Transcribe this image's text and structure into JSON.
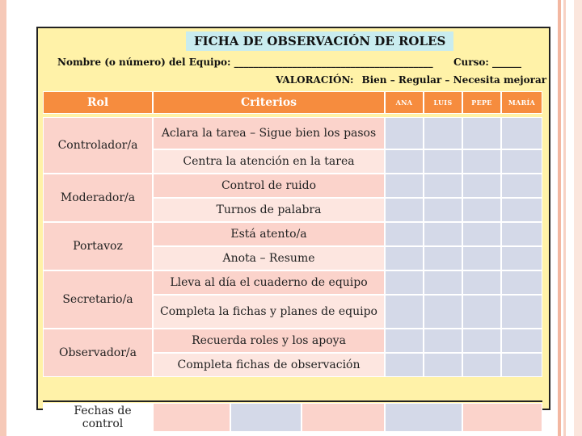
{
  "sheet": {
    "title": "FICHA DE OBSERVACIÓN DE ROLES",
    "equipo_label": "Nombre (o número) del Equipo: _________________________________________",
    "curso_label": "Curso: ______",
    "valoracion_label": "VALORACIÓN:",
    "valoracion_scale": "Bien – Regular – Necesita mejorar"
  },
  "table": {
    "headers": {
      "rol": "Rol",
      "criterios": "Criterios",
      "students": [
        "ANA",
        "LUIS",
        "PEPE",
        "MARÍA"
      ]
    },
    "roles": [
      {
        "name": "Controlador/a",
        "criteria": [
          "Aclara la tarea – Sigue bien los pasos",
          "Centra la atención en la tarea"
        ]
      },
      {
        "name": "Moderador/a",
        "criteria": [
          "Control de ruido",
          "Turnos de palabra"
        ]
      },
      {
        "name": "Portavoz",
        "criteria": [
          "Está atento/a",
          "Anota – Resume"
        ]
      },
      {
        "name": "Secretario/a",
        "criteria": [
          "Lleva al día el cuaderno de equipo",
          "Completa la fichas y planes de equipo"
        ]
      },
      {
        "name": "Observador/a",
        "criteria": [
          "Recuerda roles y los apoya",
          "Completa fichas de observación"
        ]
      }
    ],
    "footer_label": "Fechas de control"
  },
  "colors": {
    "sheet_bg": "#fff2a8",
    "title_bg": "#c9ecef",
    "header_orange": "#f68c3e",
    "row_pink": "#fbd3cb",
    "row_light_pink": "#fde6e0",
    "cell_blue": "#d4d9e8"
  }
}
